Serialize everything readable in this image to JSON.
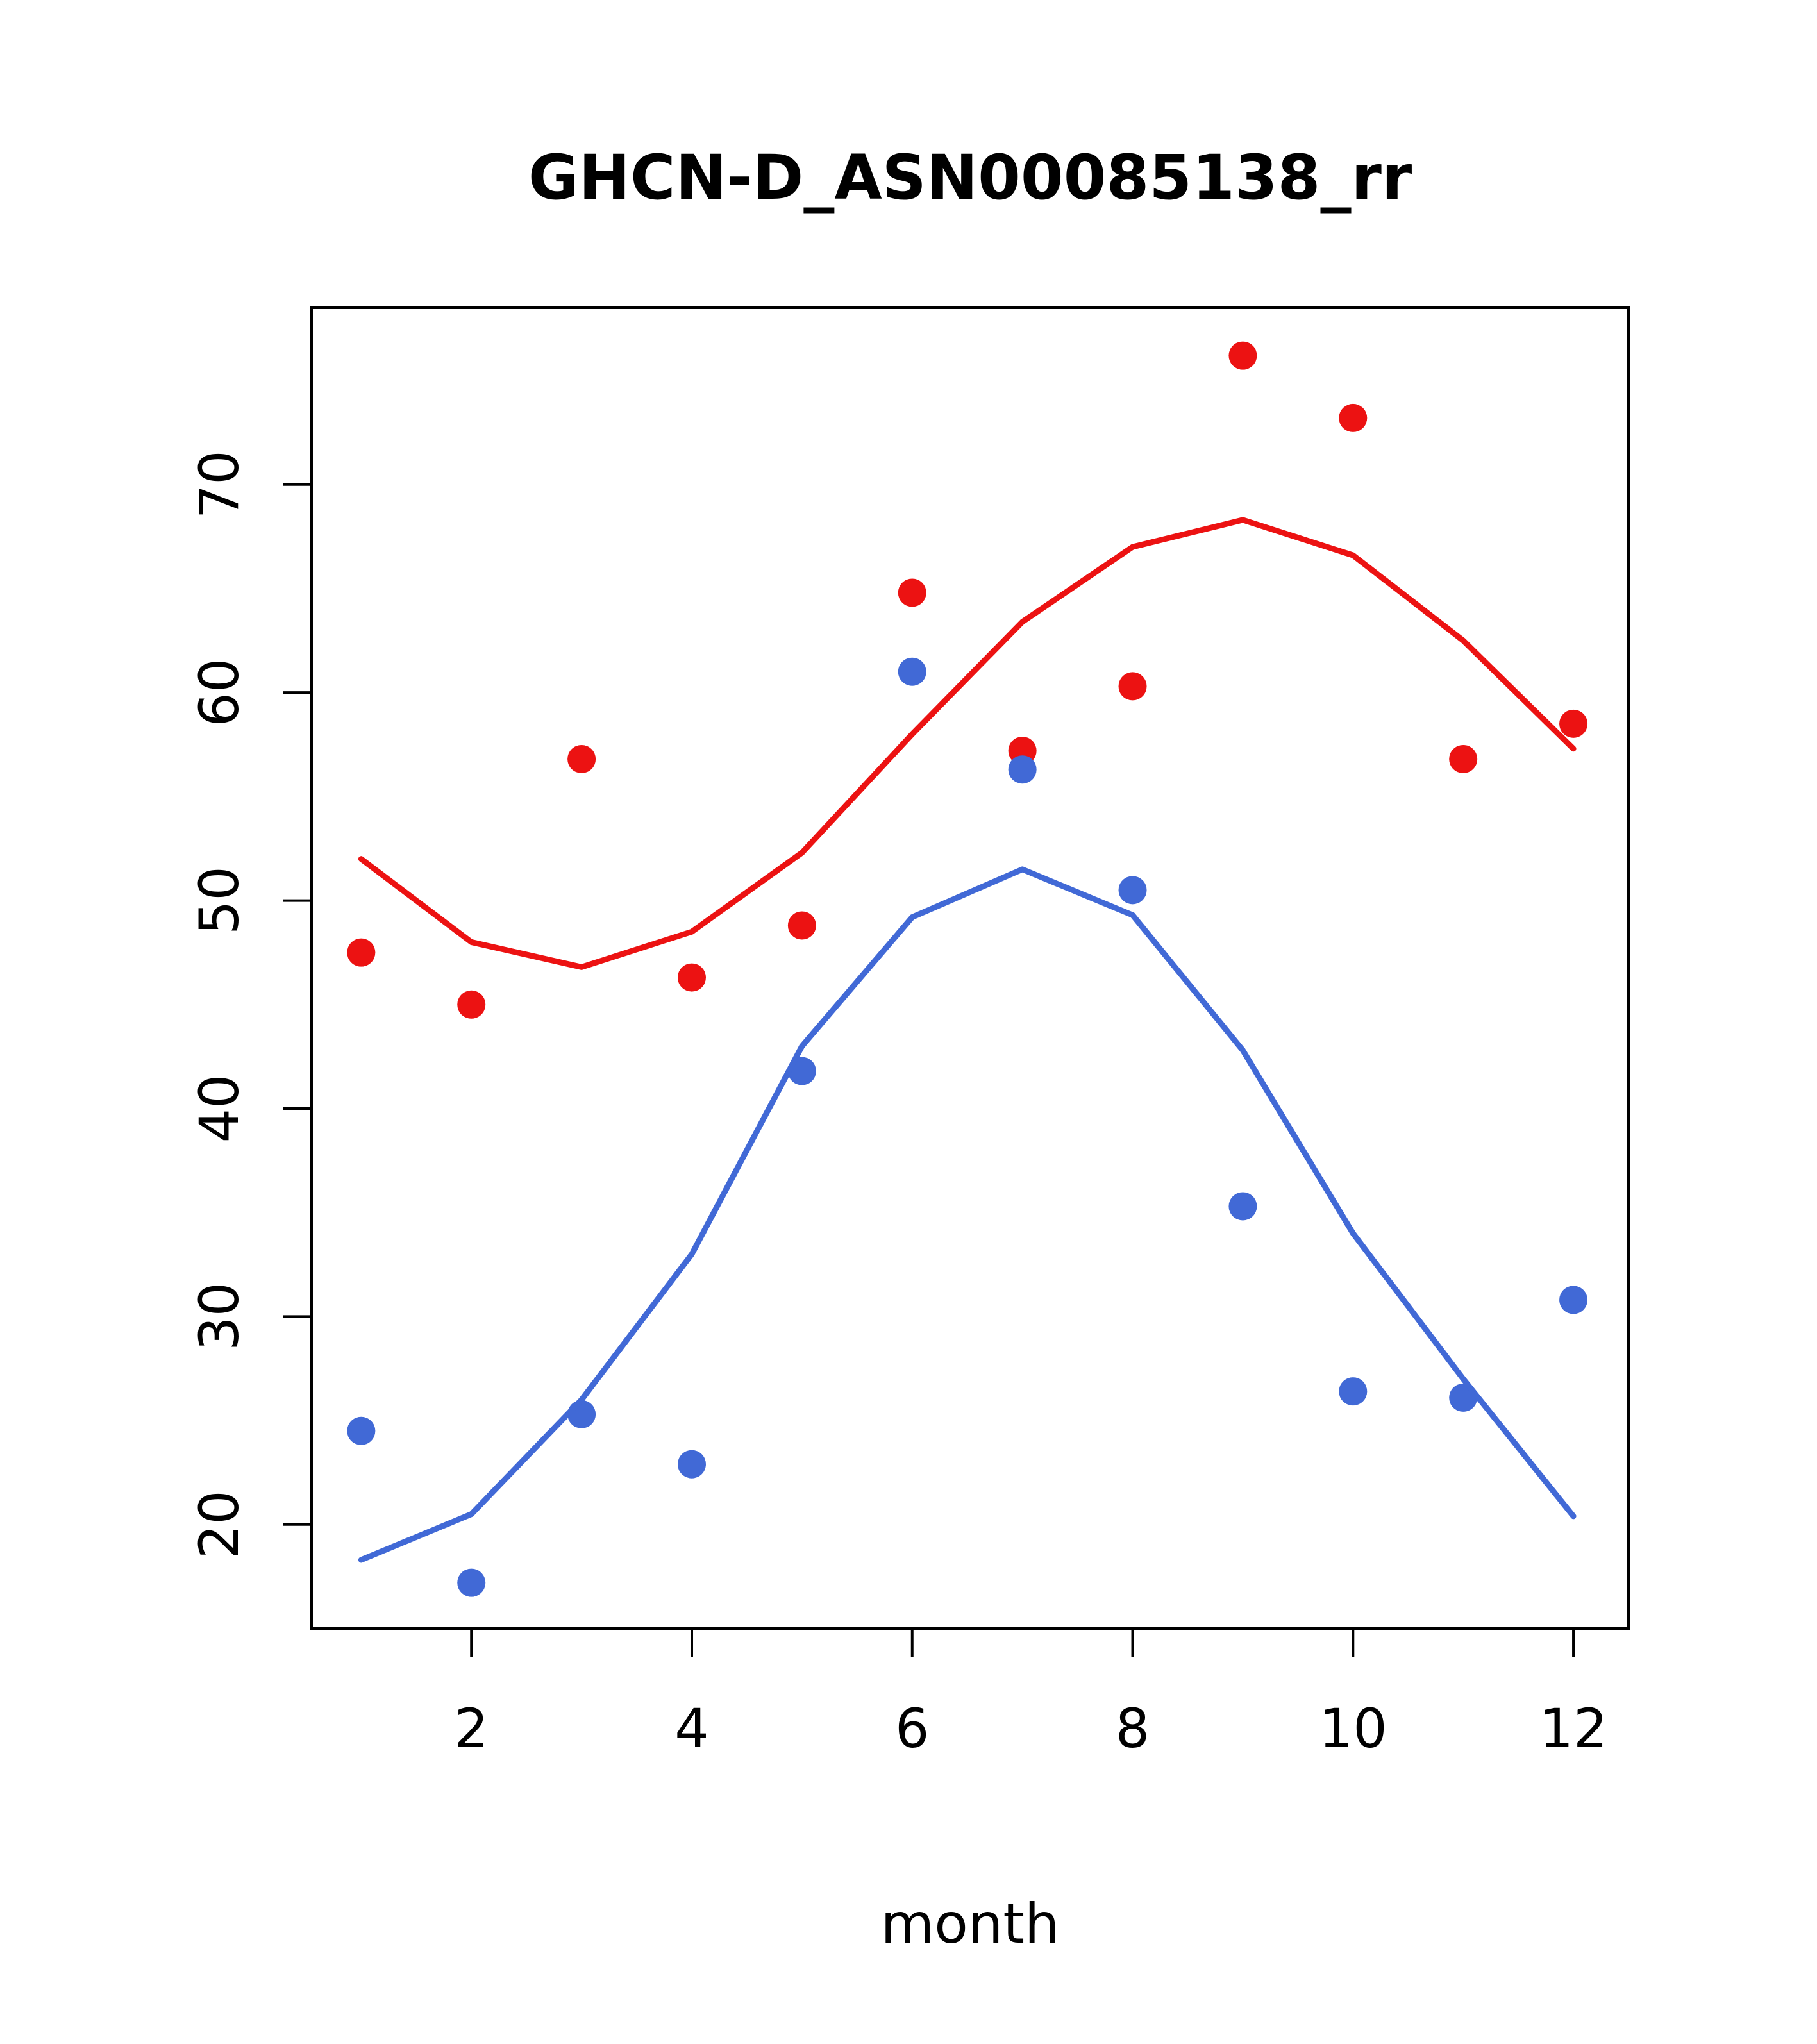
{
  "chart_data": {
    "type": "line",
    "title": "GHCN-D_ASN00085138_rr",
    "xlabel": "month",
    "ylabel": "",
    "x": [
      1,
      2,
      3,
      4,
      5,
      6,
      7,
      8,
      9,
      10,
      11,
      12
    ],
    "xlim": [
      0.55,
      12.5
    ],
    "ylim": [
      15,
      78.5
    ],
    "x_ticks": [
      2,
      4,
      6,
      8,
      10,
      12
    ],
    "y_ticks": [
      20,
      30,
      40,
      50,
      60,
      70
    ],
    "grid": false,
    "legend": "none",
    "colors": {
      "red": "#ec1212",
      "blue": "#4169d6",
      "axis": "#000000",
      "background": "#ffffff"
    },
    "series": [
      {
        "name": "red-monthly-points",
        "kind": "scatter",
        "color_key": "red",
        "values": [
          47.5,
          45.0,
          56.8,
          46.3,
          48.8,
          64.8,
          57.2,
          60.3,
          76.2,
          73.2,
          56.8,
          58.5
        ]
      },
      {
        "name": "blue-monthly-points",
        "kind": "scatter",
        "color_key": "blue",
        "values": [
          24.5,
          17.2,
          25.3,
          22.9,
          41.8,
          61.0,
          56.3,
          50.5,
          35.3,
          26.4,
          26.1,
          30.8
        ]
      },
      {
        "name": "red-smooth-line",
        "kind": "line",
        "color_key": "red",
        "values": [
          52.0,
          48.0,
          46.8,
          48.5,
          52.3,
          58.0,
          63.4,
          67.0,
          68.3,
          66.6,
          62.5,
          57.3
        ]
      },
      {
        "name": "blue-smooth-line",
        "kind": "line",
        "color_key": "blue",
        "values": [
          18.3,
          20.5,
          26.0,
          33.0,
          43.0,
          49.2,
          51.5,
          49.3,
          42.8,
          34.0,
          27.0,
          20.4
        ]
      }
    ]
  }
}
